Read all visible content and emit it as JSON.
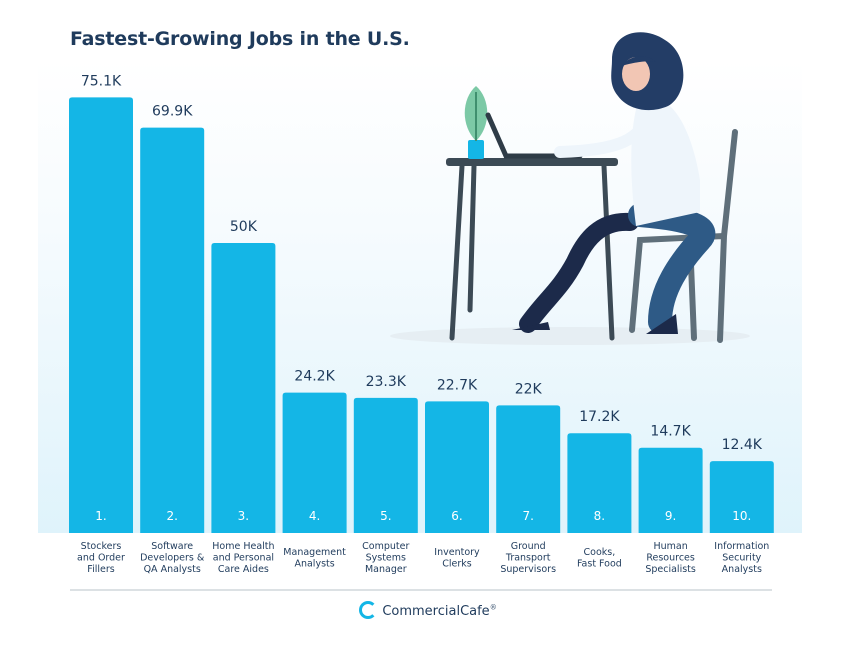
{
  "chart_data": {
    "type": "bar",
    "title": "Fastest-Growing Jobs in the U.S.",
    "categories": [
      "Stockers and Order Fillers",
      "Software Developers & QA Analysts",
      "Home Health and Personal Care Aides",
      "Management Analysts",
      "Computer Systems Manager",
      "Inventory Clerks",
      "Ground Transport Supervisors",
      "Cooks, Fast Food",
      "Human Resources Specialists",
      "Information Security Analysts"
    ],
    "category_lines": [
      [
        "Stockers",
        "and Order",
        "Fillers"
      ],
      [
        "Software",
        "Developers &",
        "QA Analysts"
      ],
      [
        "Home Health",
        "and Personal",
        "Care Aides"
      ],
      [
        "Management",
        "Analysts"
      ],
      [
        "Computer",
        "Systems",
        "Manager"
      ],
      [
        "Inventory",
        "Clerks"
      ],
      [
        "Ground",
        "Transport",
        "Supervisors"
      ],
      [
        "Cooks,",
        "Fast Food"
      ],
      [
        "Human",
        "Resources",
        "Specialists"
      ],
      [
        "Information",
        "Security",
        "Analysts"
      ]
    ],
    "values": [
      75.1,
      69.9,
      50,
      24.2,
      23.3,
      22.7,
      22,
      17.2,
      14.7,
      12.4
    ],
    "value_labels": [
      "75.1K",
      "69.9K",
      "50K",
      "24.2K",
      "23.3K",
      "22.7K",
      "22K",
      "17.2K",
      "14.7K",
      "12.4K"
    ],
    "rank_labels": [
      "1.",
      "2.",
      "3.",
      "4.",
      "5.",
      "6.",
      "7.",
      "8.",
      "9.",
      "10."
    ],
    "xlabel": "",
    "ylabel": "",
    "grid": false,
    "bar_color": "#14b6e6"
  },
  "colors": {
    "bar": "#14b6e6",
    "title": "#1f3b5c",
    "text": "#1f3b5c",
    "background_tint": "#e4f5fc"
  },
  "footer": {
    "brand": "CommercialCafe",
    "brand_mark": "®",
    "logo_icon": "commercialcafe-logo-icon"
  }
}
